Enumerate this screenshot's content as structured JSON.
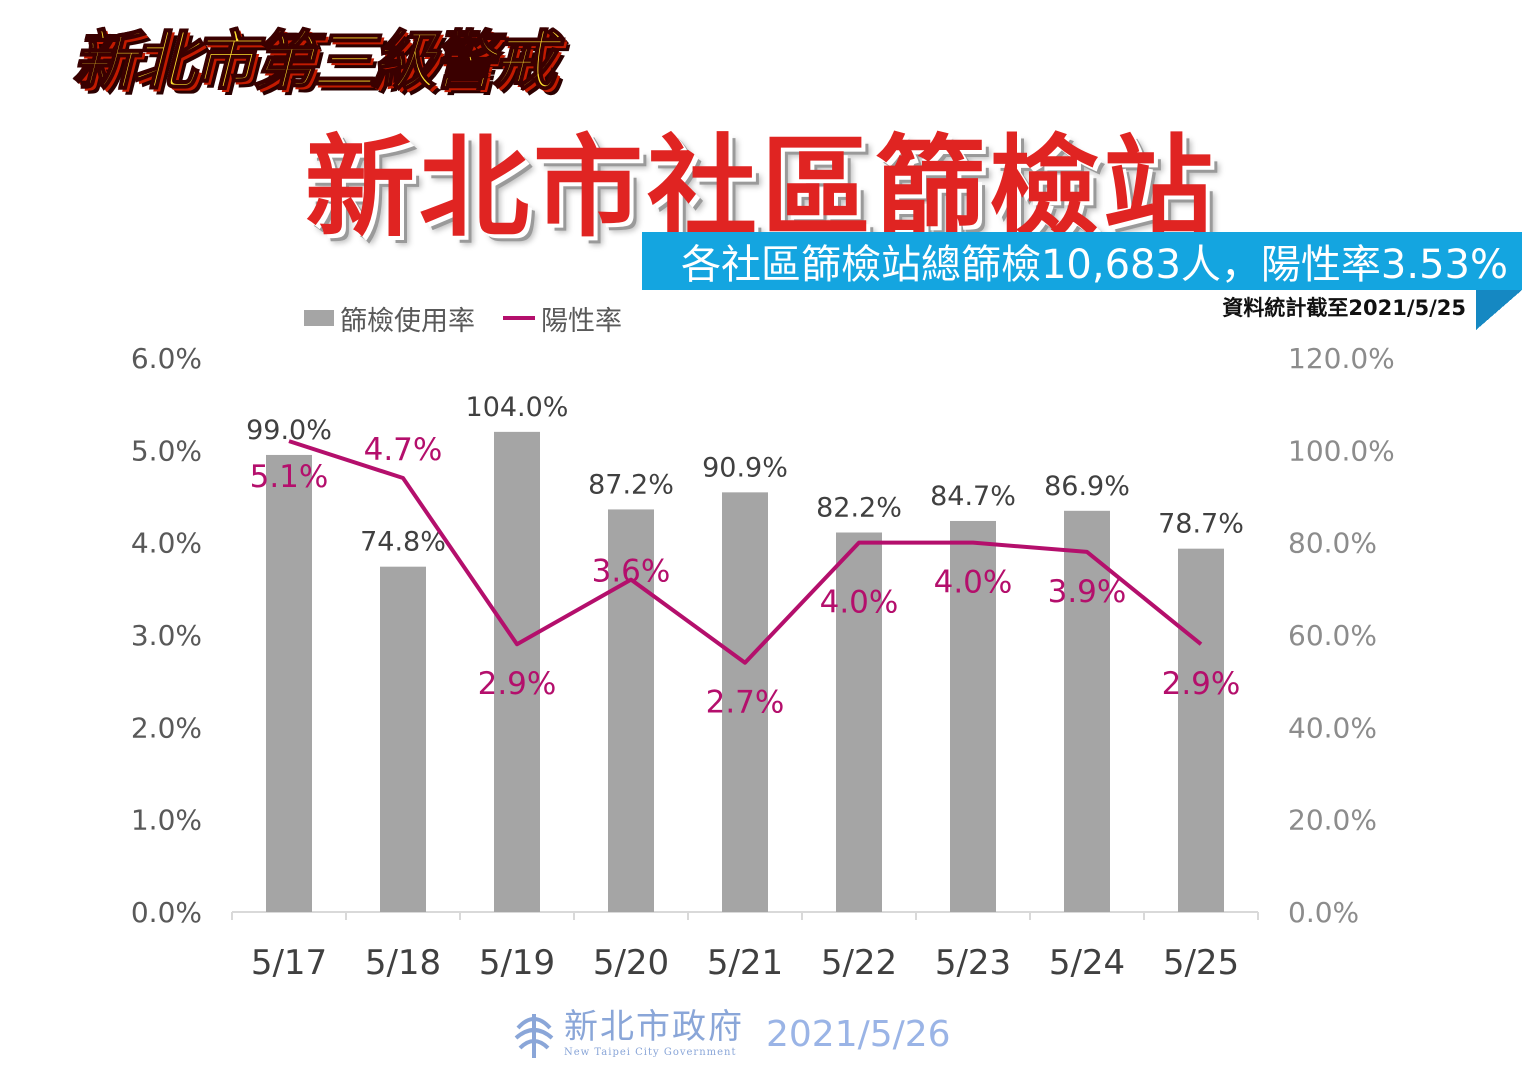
{
  "banner": "新北市第三級警戒",
  "title": "新北市社區篩檢站",
  "summary": "各社區篩檢站總篩檢10,683人，陽性率3.53%",
  "data_date": "資料統計截至2021/5/25",
  "footer": {
    "logo_cn": "新北市政府",
    "logo_en": "New Taipei City Government",
    "date": "2021/5/26"
  },
  "colors": {
    "bar": "#a5a5a5",
    "line": "#b40f6c",
    "title": "#e02422",
    "banner_bar": "#14a5e0"
  },
  "chart_data": {
    "type": "bar+line",
    "categories": [
      "5/17",
      "5/18",
      "5/19",
      "5/20",
      "5/21",
      "5/22",
      "5/23",
      "5/24",
      "5/25"
    ],
    "series": [
      {
        "name": "篩檢使用率",
        "type": "bar",
        "axis": "right",
        "values": [
          99.0,
          74.8,
          104.0,
          87.2,
          90.9,
          82.2,
          84.7,
          86.9,
          78.7
        ],
        "labels": [
          "99.0%",
          "74.8%",
          "104.0%",
          "87.2%",
          "90.9%",
          "82.2%",
          "84.7%",
          "86.9%",
          "78.7%"
        ]
      },
      {
        "name": "陽性率",
        "type": "line",
        "axis": "left",
        "values": [
          5.1,
          4.7,
          2.9,
          3.6,
          2.7,
          4.0,
          4.0,
          3.9,
          2.9
        ],
        "labels": [
          "5.1%",
          "4.7%",
          "2.9%",
          "3.6%",
          "2.7%",
          "4.0%",
          "4.0%",
          "3.9%",
          "2.9%"
        ]
      }
    ],
    "y_left": {
      "range": [
        0,
        6
      ],
      "ticks": [
        "0.0%",
        "1.0%",
        "2.0%",
        "3.0%",
        "4.0%",
        "5.0%",
        "6.0%"
      ]
    },
    "y_right": {
      "range": [
        0,
        120
      ],
      "ticks": [
        "0.0%",
        "20.0%",
        "40.0%",
        "60.0%",
        "80.0%",
        "100.0%",
        "120.0%"
      ]
    },
    "legend_position": "top-left",
    "grid": false
  }
}
